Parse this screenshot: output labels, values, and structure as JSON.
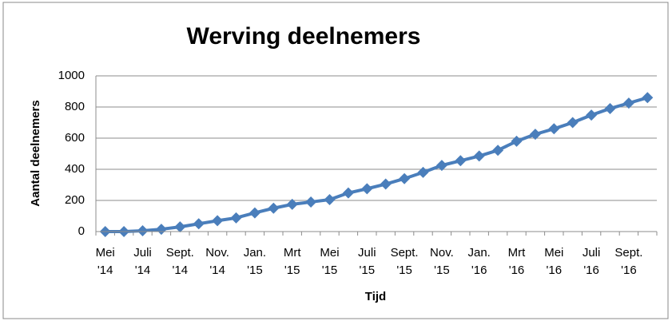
{
  "chart_data": {
    "type": "line",
    "title": "Werving deelnemers",
    "xlabel": "Tijd",
    "ylabel": "Aantal deelnemers",
    "categories": [
      "Mei\n'14",
      null,
      "Juli\n'14",
      null,
      "Sept.\n'14",
      null,
      "Nov.\n'14",
      null,
      "Jan.\n'15",
      null,
      "Mrt\n'15",
      null,
      "Mei\n'15",
      null,
      "Juli\n'15",
      null,
      "Sept.\n'15",
      null,
      "Nov.\n'15",
      null,
      "Jan.\n'16",
      null,
      "Mrt\n'16",
      null,
      "Mei\n'16",
      null,
      "Juli\n'16",
      null,
      "Sept.\n'16",
      null
    ],
    "series": [
      {
        "name": "Aantal deelnemers",
        "color": "#4a7ebb",
        "values": [
          0,
          0,
          5,
          15,
          30,
          50,
          70,
          88,
          120,
          150,
          175,
          190,
          205,
          248,
          275,
          305,
          340,
          380,
          425,
          455,
          485,
          522,
          580,
          625,
          660,
          700,
          748,
          790,
          825,
          860
        ]
      }
    ],
    "ylim": [
      0,
      1000
    ],
    "yticks": [
      0,
      200,
      400,
      600,
      800,
      1000
    ],
    "grid": true
  }
}
